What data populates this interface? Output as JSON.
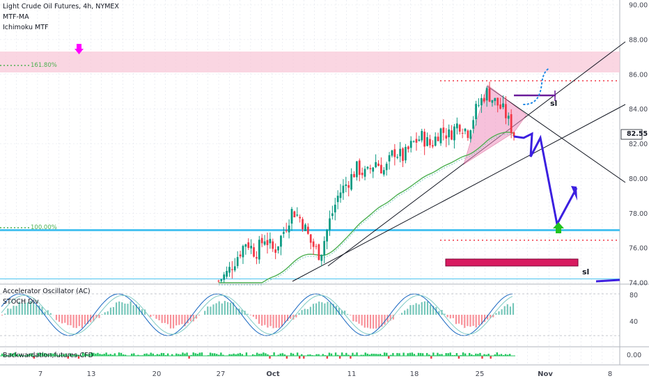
{
  "legend": {
    "title": "Light Crude Oil Futures, 4h, NYMEX",
    "indicator_1": "MTF-MA",
    "indicator_2": "Ichimoku MTF"
  },
  "oscillator": {
    "label_1": "Accelerator Oscillator (AC)",
    "label_2": "STOCH Div",
    "tick_80": "80",
    "tick_40": "40"
  },
  "backwardation": {
    "label": "Backwardation,futures-CFD",
    "tick": "0.00"
  },
  "fib_labels": {
    "f161": "161.80%",
    "f100": "100.00%"
  },
  "annotations": {
    "sl_1": "sl",
    "sl_2": "sl"
  },
  "current_price": "82.55",
  "colors": {
    "up_candle": "#089981",
    "down_candle": "#f23645",
    "fib_line": "#4cc3f0",
    "pink_zone": "#f8c8d8",
    "arrow_path": "#3b1fe0",
    "magenta_marker": "#ff00ff",
    "ma_line": "#4caf50",
    "red_rect": "#d81b60",
    "green_arrow": "#21c321"
  },
  "chart_data": {
    "type": "line",
    "title": "Light Crude Oil Futures, 4h, NYMEX",
    "y_axis": {
      "ticks": [
        "90.00",
        "88.00",
        "86.00",
        "84.00",
        "82.00",
        "80.00",
        "78.00",
        "76.00",
        "74.00"
      ],
      "range": [
        73.9,
        90.3
      ]
    },
    "x_axis": {
      "ticks": [
        "7",
        "13",
        "20",
        "27",
        "Oct",
        "11",
        "18",
        "25",
        "Nov",
        "8"
      ]
    },
    "series": [
      {
        "values_approx": [
          74.1,
          74.6,
          75.5,
          76.4,
          75.7,
          76.6,
          75.8,
          76.9,
          78.2,
          77.6,
          76.3,
          75.6,
          77.5,
          79.1,
          79.8,
          80.6,
          80.2,
          81.0,
          80.4,
          81.6,
          81.2,
          82.0,
          82.4,
          81.9,
          82.8,
          82.5,
          83.2,
          82.7,
          84.1,
          85.0,
          84.4,
          83.8,
          82.55
        ]
      }
    ],
    "levels": {
      "fib_161_8": 86.8,
      "fib_100": 77.0,
      "resistance_dotted": 85.7,
      "support_dotted": 76.5
    },
    "projected_path": [
      82.4,
      81.5,
      82.2,
      80.9,
      77.3,
      79.7,
      78.8
    ]
  }
}
